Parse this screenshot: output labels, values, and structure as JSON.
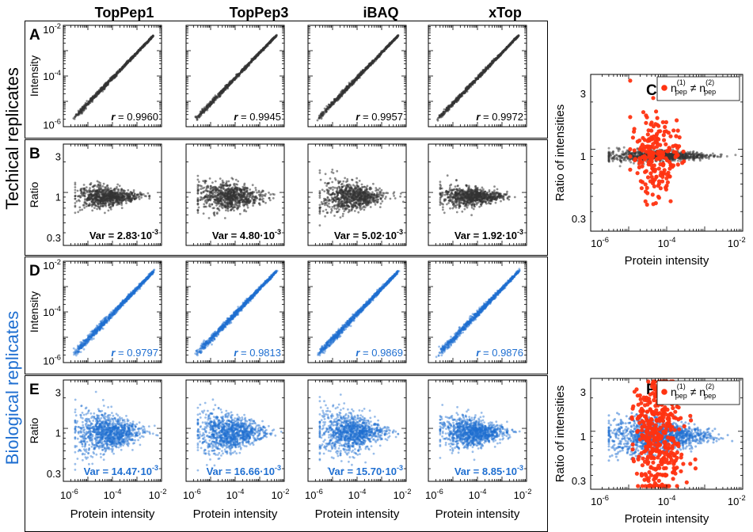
{
  "columns": [
    "TopPep1",
    "TopPep3",
    "iBAQ",
    "xTop"
  ],
  "row_group_labels": {
    "technical": "Techical replicates",
    "biological": "Biological replicates"
  },
  "panel_letters": [
    "A",
    "B",
    "C",
    "D",
    "E",
    "F"
  ],
  "colors": {
    "technical": "#333333",
    "biological": "#1f6fd1",
    "highlight": "#ff3311",
    "biological_label": "#1f6fd1"
  },
  "axis_labels": {
    "intensity": "Intensity",
    "ratio": "Ratio",
    "protein_intensity": "Protein intensity",
    "ratio_of_intensities": "Ratio of intensities"
  },
  "legend": {
    "marker": "highlight-dot",
    "text_n": "n",
    "sup1": "(1)",
    "sup2": "(2)",
    "sub": "pep",
    "neq": "≠"
  },
  "chart_data": [
    {
      "id": "A",
      "type": "scatter",
      "scale": "log-log",
      "xlim": [
        1e-06,
        0.01
      ],
      "ylim": [
        1e-06,
        0.01
      ],
      "ylabel": "Intensity",
      "y_ticks": [
        "10-2",
        "10-4",
        "10-6"
      ],
      "stat_label": "r",
      "stat_values": [
        "0.9960",
        "0.9945",
        "0.9957",
        "0.9972"
      ],
      "series_color": "technical"
    },
    {
      "id": "B",
      "type": "scatter",
      "scale": "log-log",
      "xlim": [
        1e-06,
        0.01
      ],
      "ylim": [
        0.3,
        3
      ],
      "ylabel": "Ratio",
      "y_ticks": [
        "3",
        "1",
        "0.3"
      ],
      "stat_label": "Var",
      "stat_values": [
        "2.83·10-3",
        "4.80·10-3",
        "5.02·10-3",
        "1.92·10-3"
      ],
      "series_color": "technical"
    },
    {
      "id": "C",
      "type": "scatter",
      "scale": "log-log",
      "xlim": [
        1e-06,
        0.01
      ],
      "ylim": [
        0.3,
        3
      ],
      "xlabel": "Protein intensity",
      "ylabel": "Ratio of intensities",
      "x_ticks": [
        "10-6",
        "10-4",
        "10-2"
      ],
      "y_ticks": [
        "3",
        "1",
        "0.3"
      ],
      "series": [
        {
          "color": "technical"
        },
        {
          "color": "highlight"
        }
      ]
    },
    {
      "id": "D",
      "type": "scatter",
      "scale": "log-log",
      "xlim": [
        1e-06,
        0.01
      ],
      "ylim": [
        1e-06,
        0.01
      ],
      "ylabel": "Intensity",
      "y_ticks": [
        "10-2",
        "10-4",
        "10-6"
      ],
      "stat_label": "r",
      "stat_values": [
        "0.9797",
        "0.9813",
        "0.9869",
        "0.9876"
      ],
      "series_color": "biological"
    },
    {
      "id": "E",
      "type": "scatter",
      "scale": "log-log",
      "xlim": [
        1e-06,
        0.01
      ],
      "ylim": [
        0.3,
        3
      ],
      "xlabel": "Protein intensity",
      "ylabel": "Ratio",
      "x_ticks": [
        "10-6",
        "10-4",
        "10-2"
      ],
      "y_ticks": [
        "3",
        "1",
        "0.3"
      ],
      "stat_label": "Var",
      "stat_values": [
        "14.47·10-3",
        "16.66·10-3",
        "15.70·10-3",
        "8.85·10-3"
      ],
      "series_color": "biological"
    },
    {
      "id": "F",
      "type": "scatter",
      "scale": "log-log",
      "xlim": [
        1e-06,
        0.01
      ],
      "ylim": [
        0.3,
        3
      ],
      "xlabel": "Protein intensity",
      "ylabel": "Ratio of intensities",
      "x_ticks": [
        "10-6",
        "10-4",
        "10-2"
      ],
      "y_ticks": [
        "3",
        "1",
        "0.3"
      ],
      "series": [
        {
          "color": "biological"
        },
        {
          "color": "highlight"
        }
      ]
    }
  ]
}
